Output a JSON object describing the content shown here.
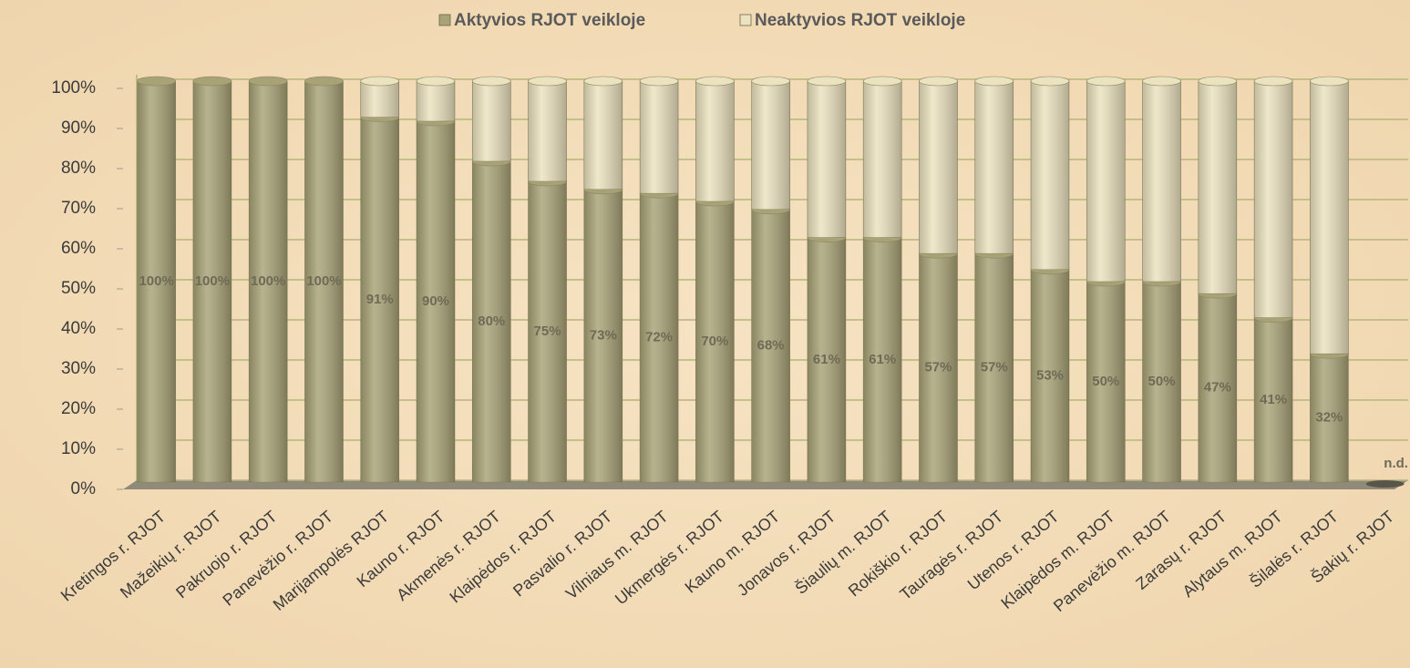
{
  "chart_data": {
    "type": "stacked_bar",
    "categories": [
      "Kretingos r. RJOT",
      "Mažeikių r. RJOT",
      "Pakruojo r. RJOT",
      "Panevėžio r. RJOT",
      "Marijampolės RJOT",
      "Kauno r. RJOT",
      "Akmenės r. RJOT",
      "Klaipėdos r. RJOT",
      "Pasvalio r. RJOT",
      "Vilniaus m. RJOT",
      "Ukmergės r. RJOT",
      "Kauno m. RJOT",
      "Jonavos r. RJOT",
      "Šiaulių m. RJOT",
      "Rokiškio r. RJOT",
      "Tauragės r. RJOT",
      "Utenos r. RJOT",
      "Klaipėdos m. RJOT",
      "Panevėžio m. RJOT",
      "Zarasų r. RJOT",
      "Alytaus m. RJOT",
      "Šilalės r. RJOT",
      "Šakių r. RJOT"
    ],
    "series": [
      {
        "name": "Aktyvios RJOT veikloje",
        "color": "#a8a276",
        "values": [
          100,
          100,
          100,
          100,
          91,
          90,
          80,
          75,
          73,
          72,
          70,
          68,
          61,
          61,
          57,
          57,
          53,
          50,
          50,
          47,
          41,
          32,
          null
        ],
        "value_labels": [
          "100%",
          "100%",
          "100%",
          "100%",
          "91%",
          "90%",
          "80%",
          "75%",
          "73%",
          "72%",
          "70%",
          "68%",
          "61%",
          "61%",
          "57%",
          "57%",
          "53%",
          "50%",
          "50%",
          "47%",
          "41%",
          "32%",
          "n.d."
        ]
      },
      {
        "name": "Neaktyvios RJOT veikloje",
        "color": "#ebe2bf",
        "values": [
          0,
          0,
          0,
          0,
          9,
          10,
          20,
          25,
          27,
          28,
          30,
          32,
          39,
          39,
          43,
          43,
          47,
          50,
          50,
          53,
          59,
          68,
          null
        ]
      }
    ],
    "ylim": [
      0,
      100
    ],
    "yticks": [
      {
        "value": 0,
        "label": "0%"
      },
      {
        "value": 10,
        "label": "10%"
      },
      {
        "value": 20,
        "label": "20%"
      },
      {
        "value": 30,
        "label": "30%"
      },
      {
        "value": 40,
        "label": "40%"
      },
      {
        "value": 50,
        "label": "50%"
      },
      {
        "value": 60,
        "label": "60%"
      },
      {
        "value": 70,
        "label": "70%"
      },
      {
        "value": 80,
        "label": "80%"
      },
      {
        "value": 90,
        "label": "90%"
      },
      {
        "value": 100,
        "label": "100%"
      }
    ],
    "grid": true,
    "legend": "top"
  }
}
